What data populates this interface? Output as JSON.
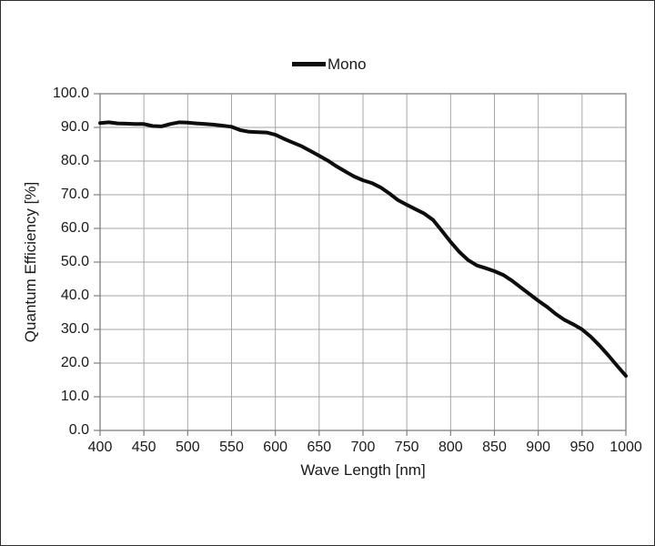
{
  "colors": {
    "grid": "#a6a6a6",
    "axis": "#7f7f7f",
    "curve": "#0d0d0d",
    "text": "#1a1a1a",
    "background": "#ffffff"
  },
  "chart_data": {
    "type": "line",
    "title": "",
    "xlabel": "Wave Length [nm]",
    "ylabel": "Quantum Efficiency [%]",
    "xlim": [
      400,
      1000
    ],
    "ylim": [
      0,
      100
    ],
    "grid": true,
    "legend_position": "top-center",
    "x_ticks": [
      400,
      450,
      500,
      550,
      600,
      650,
      700,
      750,
      800,
      850,
      900,
      950,
      1000
    ],
    "x_tick_labels": [
      "400",
      "450",
      "500",
      "550",
      "600",
      "650",
      "700",
      "750",
      "800",
      "850",
      "900",
      "950",
      "1000"
    ],
    "y_ticks": [
      0,
      10,
      20,
      30,
      40,
      50,
      60,
      70,
      80,
      90,
      100
    ],
    "y_tick_labels": [
      "0.0",
      "10.0",
      "20.0",
      "30.0",
      "40.0",
      "50.0",
      "60.0",
      "70.0",
      "80.0",
      "90.0",
      "100.0"
    ],
    "series": [
      {
        "name": "Mono",
        "color": "#0d0d0d",
        "x": [
          400,
          410,
          420,
          430,
          440,
          450,
          460,
          470,
          480,
          490,
          500,
          510,
          520,
          530,
          540,
          550,
          560,
          570,
          580,
          590,
          600,
          610,
          620,
          630,
          640,
          650,
          660,
          670,
          680,
          690,
          700,
          710,
          720,
          730,
          740,
          750,
          760,
          770,
          780,
          790,
          800,
          810,
          820,
          830,
          840,
          850,
          860,
          870,
          880,
          890,
          900,
          910,
          920,
          930,
          940,
          950,
          960,
          970,
          980,
          990,
          1000
        ],
        "y": [
          91.3,
          91.5,
          91.2,
          91.1,
          91.0,
          91.0,
          90.4,
          90.3,
          91.0,
          91.5,
          91.4,
          91.2,
          91.0,
          90.8,
          90.5,
          90.2,
          89.2,
          88.7,
          88.6,
          88.5,
          87.8,
          86.6,
          85.5,
          84.4,
          83.0,
          81.6,
          80.1,
          78.4,
          76.9,
          75.4,
          74.3,
          73.5,
          72.2,
          70.4,
          68.4,
          67.0,
          65.7,
          64.4,
          62.5,
          59.3,
          56.0,
          53.0,
          50.6,
          49.0,
          48.2,
          47.3,
          46.2,
          44.5,
          42.5,
          40.5,
          38.5,
          36.7,
          34.6,
          32.8,
          31.5,
          30.0,
          27.8,
          25.2,
          22.3,
          19.2,
          16.2
        ]
      }
    ]
  }
}
